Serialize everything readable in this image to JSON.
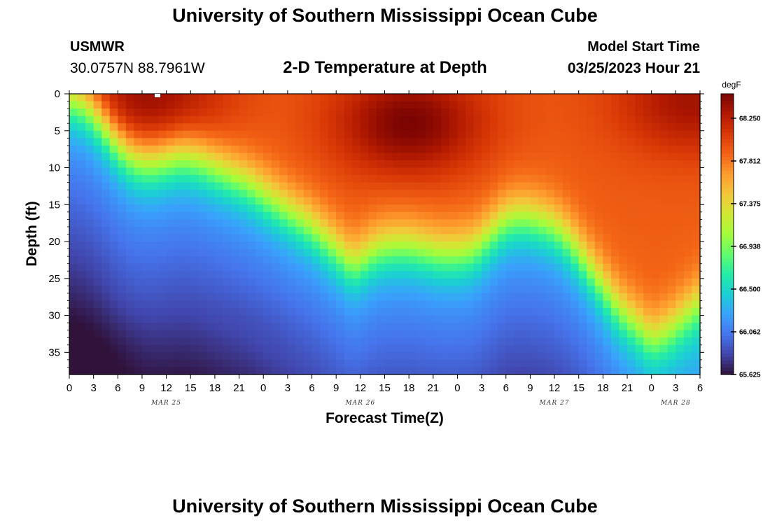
{
  "header": {
    "title": "University of Southern Mississippi Ocean Cube",
    "station": "USMWR",
    "coordinates": "30.0757N  88.7961W",
    "subtitle": "2-D Temperature at Depth",
    "model_start_label": "Model Start Time",
    "model_start_value": "03/25/2023 Hour 21"
  },
  "footer": {
    "title": "University of Southern Mississippi Ocean Cube"
  },
  "chart_data": {
    "type": "heatmap",
    "xlabel": "Forecast Time(Z)",
    "ylabel": "Depth (ft)",
    "x_tick_labels": [
      "0",
      "3",
      "6",
      "9",
      "12",
      "15",
      "18",
      "21",
      "0",
      "3",
      "6",
      "9",
      "12",
      "15",
      "18",
      "21",
      "0",
      "3",
      "6",
      "9",
      "12",
      "15",
      "18",
      "21",
      "0",
      "3",
      "6"
    ],
    "x_range_hours": [
      0,
      78
    ],
    "x_tick_step_hours": 3,
    "date_labels": [
      {
        "label": "MAR 25",
        "hour": 12
      },
      {
        "label": "MAR 26",
        "hour": 36
      },
      {
        "label": "MAR 27",
        "hour": 60
      },
      {
        "label": "MAR 28",
        "hour": 75
      }
    ],
    "y_tick_labels": [
      "0",
      "5",
      "10",
      "15",
      "20",
      "25",
      "30",
      "35"
    ],
    "y_range_ft": [
      0,
      38
    ],
    "y_tick_step_ft": 5,
    "y_inverted": true,
    "colorbar": {
      "unit": "degF",
      "min": 65.625,
      "max": 68.5,
      "tick_values": [
        65.625,
        66.062,
        66.5,
        66.938,
        67.375,
        67.812,
        68.25
      ],
      "tick_labels": [
        "65.625",
        "66.062",
        "66.500",
        "66.938",
        "67.375",
        "67.812",
        "68.250"
      ],
      "colormap": [
        "#30123b",
        "#4145ab",
        "#4675ed",
        "#39a2fc",
        "#1bcfd4",
        "#24eca6",
        "#61fc6c",
        "#a4fc3b",
        "#d1e834",
        "#f3c63a",
        "#fe9b2d",
        "#f36315",
        "#d93806",
        "#b11901",
        "#7a0402"
      ]
    },
    "thermocline_depth_ft": [
      {
        "hour": 0,
        "depth": 0.5
      },
      {
        "hour": 2,
        "depth": 1.5
      },
      {
        "hour": 4,
        "depth": 4
      },
      {
        "hour": 6,
        "depth": 7
      },
      {
        "hour": 8,
        "depth": 9
      },
      {
        "hour": 10,
        "depth": 9.5
      },
      {
        "hour": 12,
        "depth": 9
      },
      {
        "hour": 14,
        "depth": 8.5
      },
      {
        "hour": 16,
        "depth": 9
      },
      {
        "hour": 18,
        "depth": 10
      },
      {
        "hour": 20,
        "depth": 11
      },
      {
        "hour": 22,
        "depth": 12
      },
      {
        "hour": 24,
        "depth": 13.5
      },
      {
        "hour": 26,
        "depth": 15
      },
      {
        "hour": 28,
        "depth": 16.5
      },
      {
        "hour": 30,
        "depth": 18
      },
      {
        "hour": 32,
        "depth": 20
      },
      {
        "hour": 34,
        "depth": 22
      },
      {
        "hour": 35,
        "depth": 23
      },
      {
        "hour": 36,
        "depth": 22.5
      },
      {
        "hour": 38,
        "depth": 21
      },
      {
        "hour": 40,
        "depth": 20.5
      },
      {
        "hour": 42,
        "depth": 20.5
      },
      {
        "hour": 44,
        "depth": 21
      },
      {
        "hour": 46,
        "depth": 21.5
      },
      {
        "hour": 48,
        "depth": 21.5
      },
      {
        "hour": 50,
        "depth": 21
      },
      {
        "hour": 52,
        "depth": 19
      },
      {
        "hour": 54,
        "depth": 17
      },
      {
        "hour": 56,
        "depth": 16.5
      },
      {
        "hour": 58,
        "depth": 17
      },
      {
        "hour": 60,
        "depth": 18
      },
      {
        "hour": 62,
        "depth": 20
      },
      {
        "hour": 64,
        "depth": 23
      },
      {
        "hour": 66,
        "depth": 26
      },
      {
        "hour": 68,
        "depth": 29
      },
      {
        "hour": 70,
        "depth": 31
      },
      {
        "hour": 72,
        "depth": 33
      },
      {
        "hour": 74,
        "depth": 32
      },
      {
        "hour": 76,
        "depth": 30
      },
      {
        "hour": 78,
        "depth": 28
      }
    ],
    "warm_cores": [
      {
        "hour": 10,
        "depth": 1,
        "value": 68.4
      },
      {
        "hour": 42,
        "depth": 4,
        "value": 68.5
      },
      {
        "hour": 77,
        "depth": 1,
        "value": 68.35
      }
    ],
    "cold_cores": [
      {
        "hour": 0,
        "depth": 38,
        "value": 65.6
      },
      {
        "hour": 18,
        "depth": 36,
        "value": 65.85
      }
    ]
  }
}
